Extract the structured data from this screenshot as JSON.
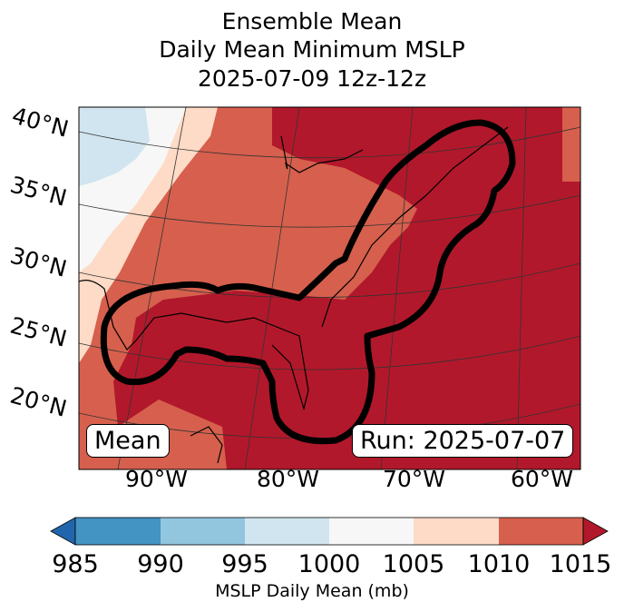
{
  "title": {
    "line1": "Ensemble Mean",
    "line2": "Daily Mean Minimum MSLP",
    "line3": "2025-07-09 12z-12z"
  },
  "map": {
    "lat_labels": [
      "40°N",
      "35°N",
      "30°N",
      "25°N",
      "20°N"
    ],
    "lon_labels": [
      "90°W",
      "80°W",
      "70°W",
      "60°W"
    ],
    "mean_box": "Mean",
    "run_box": "Run: 2025-07-07"
  },
  "colorbar": {
    "ticks": [
      "985",
      "990",
      "995",
      "1000",
      "1005",
      "1010",
      "1015"
    ],
    "colors": [
      "#2166ac",
      "#4393c3",
      "#92c5de",
      "#d1e5f0",
      "#f7f7f7",
      "#fddbc7",
      "#d6604d",
      "#b2182b"
    ],
    "label": "MSLP Daily Mean (mb)"
  }
}
